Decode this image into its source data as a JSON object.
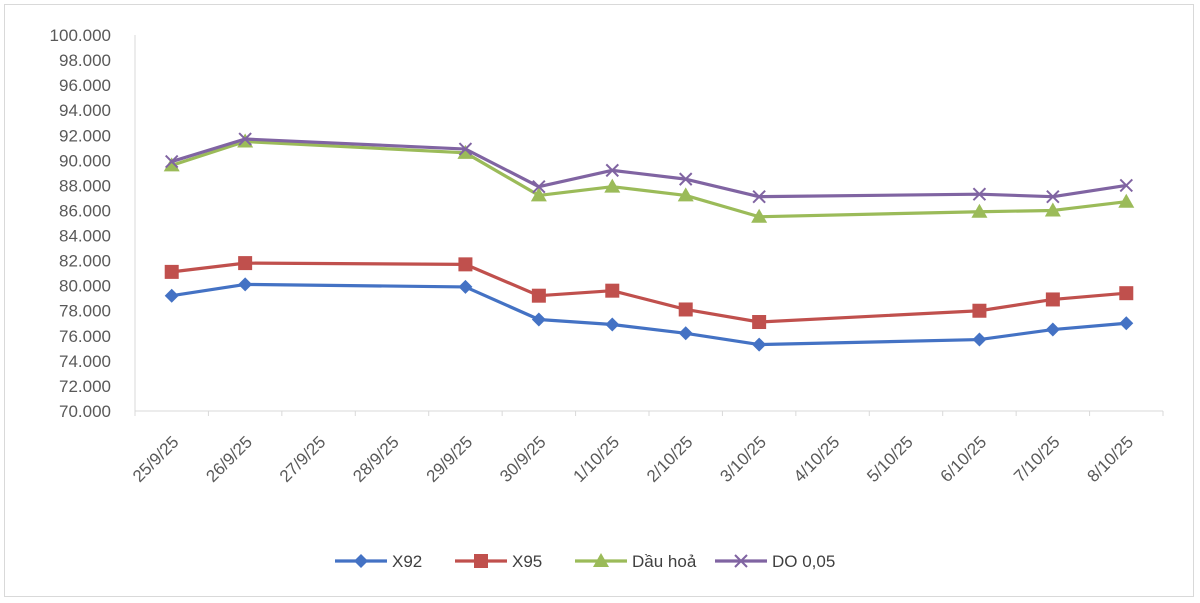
{
  "chart_data": {
    "type": "line",
    "title": "",
    "xlabel": "",
    "ylabel": "",
    "categories": [
      "25/9/25",
      "26/9/25",
      "27/9/25",
      "28/9/25",
      "29/9/25",
      "30/9/25",
      "1/10/25",
      "2/10/25",
      "3/10/25",
      "4/10/25",
      "5/10/25",
      "6/10/25",
      "7/10/25",
      "8/10/25"
    ],
    "ylim": [
      70000,
      100000
    ],
    "yticks": [
      70000,
      72000,
      74000,
      76000,
      78000,
      80000,
      82000,
      84000,
      86000,
      88000,
      90000,
      92000,
      94000,
      96000,
      98000,
      100000
    ],
    "ytick_labels": [
      "70.000",
      "72.000",
      "74.000",
      "76.000",
      "78.000",
      "80.000",
      "82.000",
      "84.000",
      "86.000",
      "88.000",
      "90.000",
      "92.000",
      "94.000",
      "96.000",
      "98.000",
      "100.000"
    ],
    "grid": false,
    "legend_position": "bottom",
    "series": [
      {
        "name": "X92",
        "color": "#4472c4",
        "marker": "diamond",
        "values": [
          79200,
          80100,
          null,
          null,
          79900,
          77300,
          76900,
          76200,
          75300,
          null,
          null,
          75700,
          76500,
          77000
        ]
      },
      {
        "name": "X95",
        "color": "#c0504d",
        "marker": "square",
        "values": [
          81100,
          81800,
          null,
          null,
          81700,
          79200,
          79600,
          78100,
          77100,
          null,
          null,
          78000,
          78900,
          79400
        ]
      },
      {
        "name": "Dầu hoả",
        "color": "#9bbb59",
        "marker": "triangle",
        "values": [
          89600,
          91500,
          null,
          null,
          90600,
          87200,
          87900,
          87200,
          85500,
          null,
          null,
          85900,
          86000,
          86700
        ]
      },
      {
        "name": "DO 0,05",
        "color": "#8064a2",
        "marker": "x",
        "values": [
          89900,
          91700,
          null,
          null,
          90900,
          87900,
          89200,
          88500,
          87100,
          null,
          null,
          87300,
          87100,
          88000
        ]
      }
    ]
  }
}
